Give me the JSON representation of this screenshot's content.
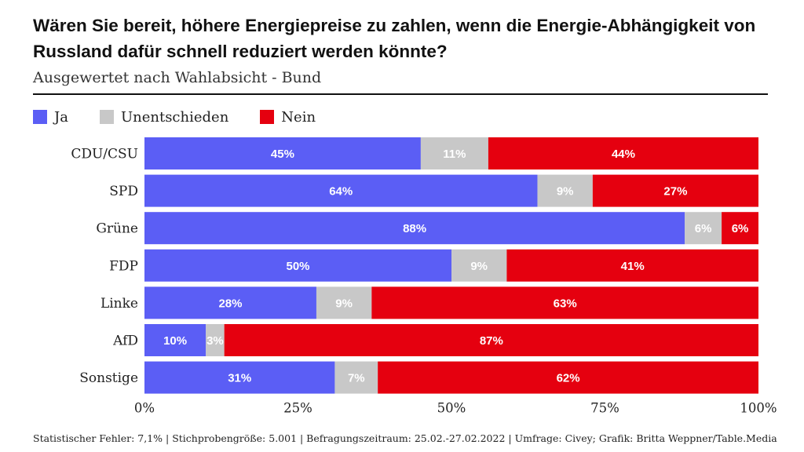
{
  "title": "Wären Sie bereit, höhere Energiepreise zu zahlen, wenn die Energie-Abhängigkeit von Russland dafür schnell reduziert werden könnte?",
  "subtitle": "Ausgewertet nach Wahlabsicht - Bund",
  "footer": "Statistischer Fehler: 7,1% | Stichprobengröße: 5.001 | Befragungszeitraum: 25.02.-27.02.2022 | Umfrage: Civey; Grafik: Britta Weppner/Table.Media",
  "legend": [
    {
      "label": "Ja",
      "color": "#5b5ef5"
    },
    {
      "label": "Unentschieden",
      "color": "#c8c8c8"
    },
    {
      "label": "Nein",
      "color": "#e5000f"
    }
  ],
  "chart_data": {
    "type": "bar",
    "orientation": "horizontal",
    "stacked": true,
    "categories": [
      "CDU/CSU",
      "SPD",
      "Grüne",
      "FDP",
      "Linke",
      "AfD",
      "Sonstige"
    ],
    "series": [
      {
        "name": "Ja",
        "color": "#5b5ef5",
        "values": [
          45,
          64,
          88,
          50,
          28,
          10,
          31
        ],
        "labels": [
          "45%",
          "64%",
          "88%",
          "50%",
          "28%",
          "10%",
          "31%"
        ]
      },
      {
        "name": "Unentschieden",
        "color": "#c8c8c8",
        "values": [
          11,
          9,
          6,
          9,
          9,
          3,
          7
        ],
        "labels": [
          "11%",
          "9%",
          "6%",
          "9%",
          "9%",
          "3%",
          "7%"
        ]
      },
      {
        "name": "Nein",
        "color": "#e5000f",
        "values": [
          44,
          27,
          6,
          41,
          63,
          87,
          62
        ],
        "labels": [
          "44%",
          "27%",
          "6%",
          "41%",
          "63%",
          "87%",
          "62%"
        ]
      }
    ],
    "xlim": [
      0,
      100
    ],
    "xticks": [
      0,
      25,
      50,
      75,
      100
    ],
    "xtick_labels": [
      "0%",
      "25%",
      "50%",
      "75%",
      "100%"
    ],
    "grid": false,
    "legend_position": "top-left"
  }
}
